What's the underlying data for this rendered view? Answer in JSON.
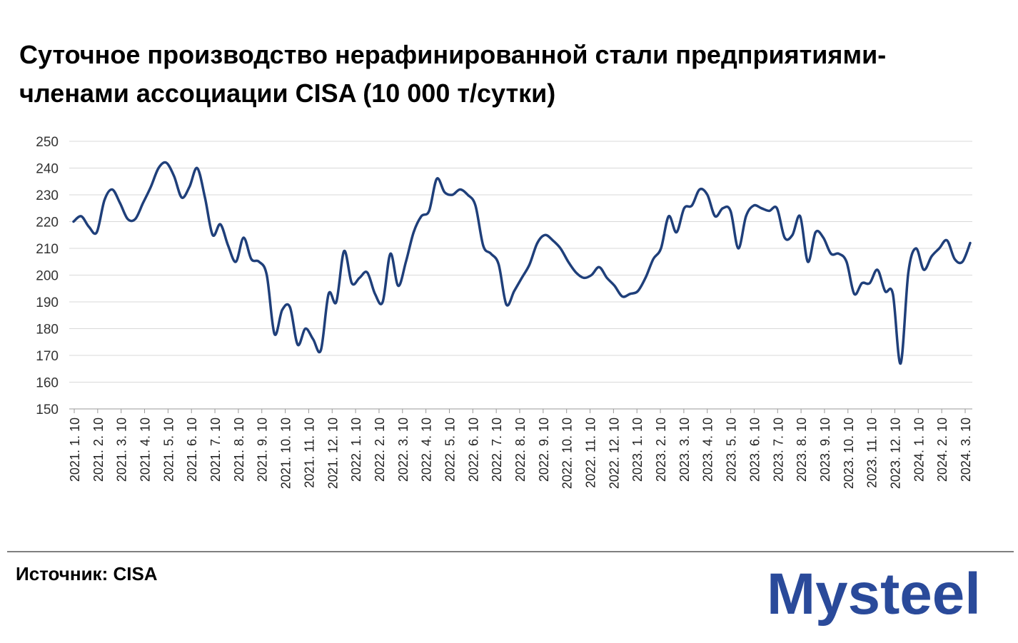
{
  "title_line1": "Суточное производство нерафинированной стали предприятиями-",
  "title_line2": "членами ассоциации CISA (10 000 т/сутки)",
  "source": "Источник: CISA",
  "logo": {
    "text": "Mysteel",
    "color": "#2a4a9a"
  },
  "chart_data": {
    "type": "line",
    "title": "Суточное производство нерафинированной стали предприятиями-членами ассоциации CISA (10 000 т/сутки)",
    "ylim": [
      150,
      250
    ],
    "yticks": [
      150,
      160,
      170,
      180,
      190,
      200,
      210,
      220,
      230,
      240,
      250
    ],
    "grid": true,
    "line_color": "#1f3f7a",
    "xticks": [
      "2021. 1. 10",
      "2021. 2. 10",
      "2021. 3. 10",
      "2021. 4. 10",
      "2021. 5. 10",
      "2021. 6. 10",
      "2021. 7. 10",
      "2021. 8. 10",
      "2021. 9. 10",
      "2021. 10. 10",
      "2021. 11. 10",
      "2021. 12. 10",
      "2022. 1. 10",
      "2022. 2. 10",
      "2022. 3. 10",
      "2022. 4. 10",
      "2022. 5. 10",
      "2022. 6. 10",
      "2022. 7. 10",
      "2022. 8. 10",
      "2022. 9. 10",
      "2022. 10. 10",
      "2022. 11. 10",
      "2022. 12. 10",
      "2023. 1. 10",
      "2023. 2. 10",
      "2023. 3. 10",
      "2023. 4. 10",
      "2023. 5. 10",
      "2023. 6. 10",
      "2023. 7. 10",
      "2023. 8. 10",
      "2023. 9. 10",
      "2023. 10. 10",
      "2023. 11. 10",
      "2023. 12. 10",
      "2024. 1. 10",
      "2024. 2. 10",
      "2024. 3. 10"
    ],
    "values": [
      220,
      222,
      218,
      216,
      228,
      232,
      227,
      221,
      221,
      227,
      233,
      240,
      242,
      237,
      229,
      233,
      240,
      229,
      215,
      219,
      211,
      205,
      214,
      206,
      205,
      200,
      178,
      187,
      188,
      174,
      180,
      176,
      172,
      193,
      190,
      209,
      197,
      199,
      201,
      193,
      190,
      208,
      196,
      205,
      216,
      222,
      224,
      236,
      231,
      230,
      232,
      230,
      226,
      211,
      208,
      204,
      189,
      194,
      199,
      204,
      212,
      215,
      213,
      210,
      205,
      201,
      199,
      200,
      203,
      199,
      196,
      192,
      193,
      194,
      199,
      206,
      210,
      222,
      216,
      225,
      226,
      232,
      230,
      222,
      225,
      224,
      210,
      222,
      226,
      225,
      224,
      225,
      214,
      215,
      222,
      205,
      216,
      214,
      208,
      208,
      205,
      193,
      197,
      197,
      202,
      194,
      193,
      167,
      201,
      210,
      202,
      207,
      210,
      213,
      206,
      205,
      212
    ]
  }
}
